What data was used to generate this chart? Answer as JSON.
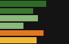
{
  "bars": [
    {
      "value": 95,
      "color": "#2e6b28"
    },
    {
      "value": 68,
      "color": "#3a7830"
    },
    {
      "value": 78,
      "color": "#8ab87a"
    },
    {
      "value": 48,
      "color": "#8ab87a"
    },
    {
      "value": 90,
      "color": "#e07820"
    },
    {
      "value": 75,
      "color": "#f0b832"
    }
  ],
  "xlim": [
    0,
    100
  ],
  "background_color": "#141414",
  "bar_height": 0.82,
  "bar_gap": 0.05
}
